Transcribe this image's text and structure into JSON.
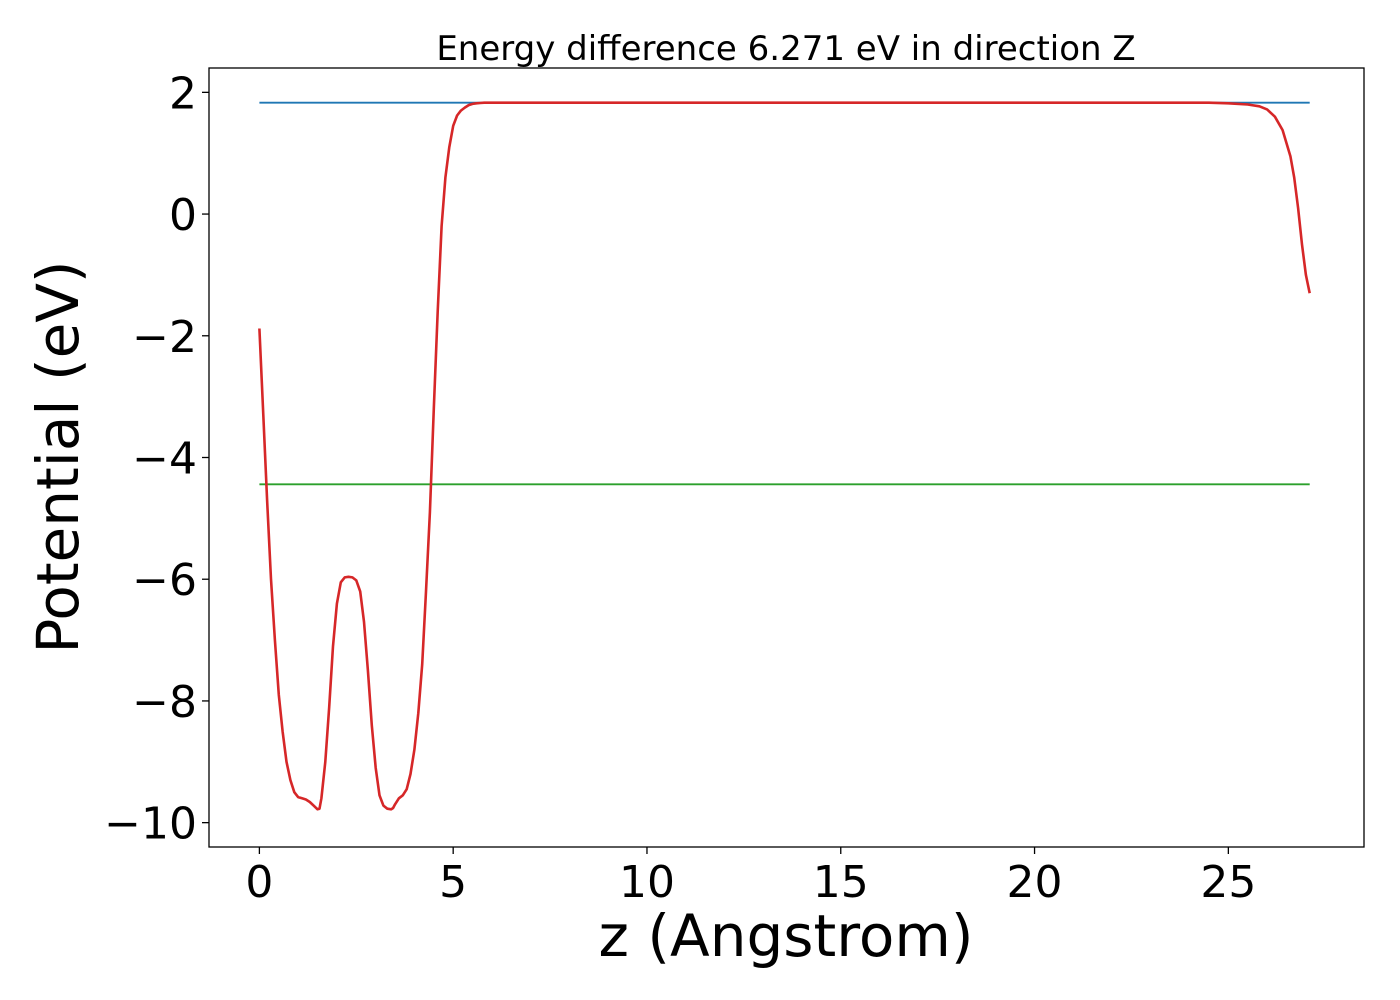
{
  "chart_data": {
    "type": "line",
    "title": "Energy difference 6.271 eV in direction Z",
    "xlabel": "z (Angstrom)",
    "ylabel": "Potential (eV)",
    "xlim": [
      -1.3,
      28.5
    ],
    "ylim": [
      -10.4,
      2.4
    ],
    "xticks": [
      0,
      5,
      10,
      15,
      20,
      25
    ],
    "xtick_labels": [
      "0",
      "5",
      "10",
      "15",
      "20",
      "25"
    ],
    "yticks": [
      2,
      0,
      -2,
      -4,
      -6,
      -8,
      -10
    ],
    "ytick_labels": [
      "2",
      "0",
      "−2",
      "−4",
      "−6",
      "−8",
      "−10"
    ],
    "grid": false,
    "series": [
      {
        "color": "#1f77b4",
        "x": [
          0,
          27.1
        ],
        "y": [
          1.83,
          1.83
        ]
      },
      {
        "color": "#2ca02c",
        "x": [
          0,
          27.1
        ],
        "y": [
          -4.44,
          -4.44
        ]
      },
      {
        "color": "#d62728",
        "x": [
          0,
          0.1,
          0.2,
          0.3,
          0.4,
          0.5,
          0.6,
          0.7,
          0.8,
          0.9,
          1.0,
          1.1,
          1.2,
          1.3,
          1.4,
          1.5,
          1.55,
          1.6,
          1.7,
          1.8,
          1.9,
          2.0,
          2.1,
          2.2,
          2.3,
          2.4,
          2.5,
          2.6,
          2.7,
          2.8,
          2.9,
          3.0,
          3.1,
          3.2,
          3.3,
          3.4,
          3.45,
          3.5,
          3.6,
          3.7,
          3.8,
          3.9,
          4.0,
          4.1,
          4.2,
          4.3,
          4.4,
          4.5,
          4.6,
          4.7,
          4.8,
          4.9,
          5.0,
          5.1,
          5.2,
          5.3,
          5.4,
          5.5,
          5.6,
          5.7,
          5.8,
          5.9,
          6.0,
          6.2,
          6.4,
          6.6,
          6.8,
          7.0,
          7.5,
          8.0,
          9.0,
          10.0,
          12.0,
          15.0,
          18.0,
          21.0,
          23.0,
          24.5,
          25.0,
          25.5,
          25.8,
          26.0,
          26.2,
          26.4,
          26.6,
          26.7,
          26.8,
          26.9,
          27.0,
          27.05,
          27.1
        ],
        "y": [
          -1.88,
          -3.3,
          -4.7,
          -6.0,
          -7.0,
          -7.9,
          -8.5,
          -9.0,
          -9.3,
          -9.5,
          -9.58,
          -9.6,
          -9.62,
          -9.66,
          -9.72,
          -9.78,
          -9.77,
          -9.6,
          -9.0,
          -8.1,
          -7.1,
          -6.4,
          -6.05,
          -5.97,
          -5.96,
          -5.97,
          -6.02,
          -6.2,
          -6.7,
          -7.5,
          -8.4,
          -9.1,
          -9.55,
          -9.72,
          -9.77,
          -9.78,
          -9.76,
          -9.7,
          -9.6,
          -9.55,
          -9.45,
          -9.2,
          -8.8,
          -8.2,
          -7.4,
          -6.2,
          -4.9,
          -3.2,
          -1.6,
          -0.2,
          0.6,
          1.1,
          1.45,
          1.62,
          1.7,
          1.75,
          1.79,
          1.81,
          1.82,
          1.825,
          1.83,
          1.83,
          1.83,
          1.83,
          1.83,
          1.83,
          1.83,
          1.83,
          1.83,
          1.83,
          1.83,
          1.83,
          1.83,
          1.83,
          1.83,
          1.83,
          1.83,
          1.83,
          1.82,
          1.8,
          1.77,
          1.72,
          1.6,
          1.38,
          0.95,
          0.6,
          0.1,
          -0.5,
          -1.0,
          -1.15,
          -1.3
        ]
      }
    ]
  }
}
